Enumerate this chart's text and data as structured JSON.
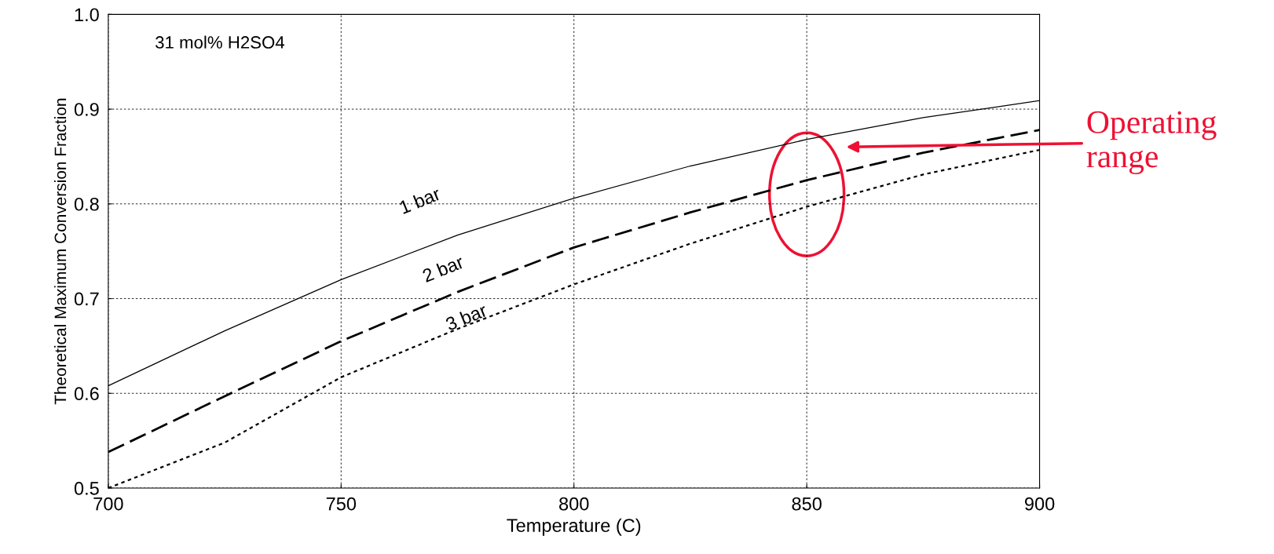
{
  "chart_data": {
    "type": "line",
    "xlabel": "Temperature (C)",
    "ylabel": "Theoretical Maximum Conversion Fraction",
    "x": [
      700,
      725,
      750,
      775,
      800,
      825,
      850,
      875,
      900
    ],
    "series": [
      {
        "name": "1 bar",
        "color": "#000000",
        "line_style": "solid",
        "values": [
          0.608,
          0.666,
          0.72,
          0.767,
          0.806,
          0.84,
          0.868,
          0.891,
          0.909
        ]
      },
      {
        "name": "2 bar",
        "color": "#000000",
        "line_style": "dashed",
        "values": [
          0.538,
          0.597,
          0.655,
          0.707,
          0.754,
          0.791,
          0.825,
          0.854,
          0.878
        ]
      },
      {
        "name": "3 bar",
        "color": "#000000",
        "line_style": "dotted",
        "values": [
          0.5,
          0.548,
          0.617,
          0.668,
          0.715,
          0.758,
          0.797,
          0.831,
          0.857
        ]
      }
    ],
    "xlim": [
      700,
      900
    ],
    "xticks": [
      700,
      750,
      800,
      850,
      900
    ],
    "ylim": [
      0.5,
      1.0
    ],
    "yticks": [
      0.5,
      0.6,
      0.7,
      0.8,
      0.9,
      {
        "value": 1.0,
        "label": "1.0"
      }
    ],
    "grid": true,
    "legend": false,
    "marker": "none",
    "annotations": [
      "31 mol% H2SO4",
      "Operating range"
    ]
  }
}
